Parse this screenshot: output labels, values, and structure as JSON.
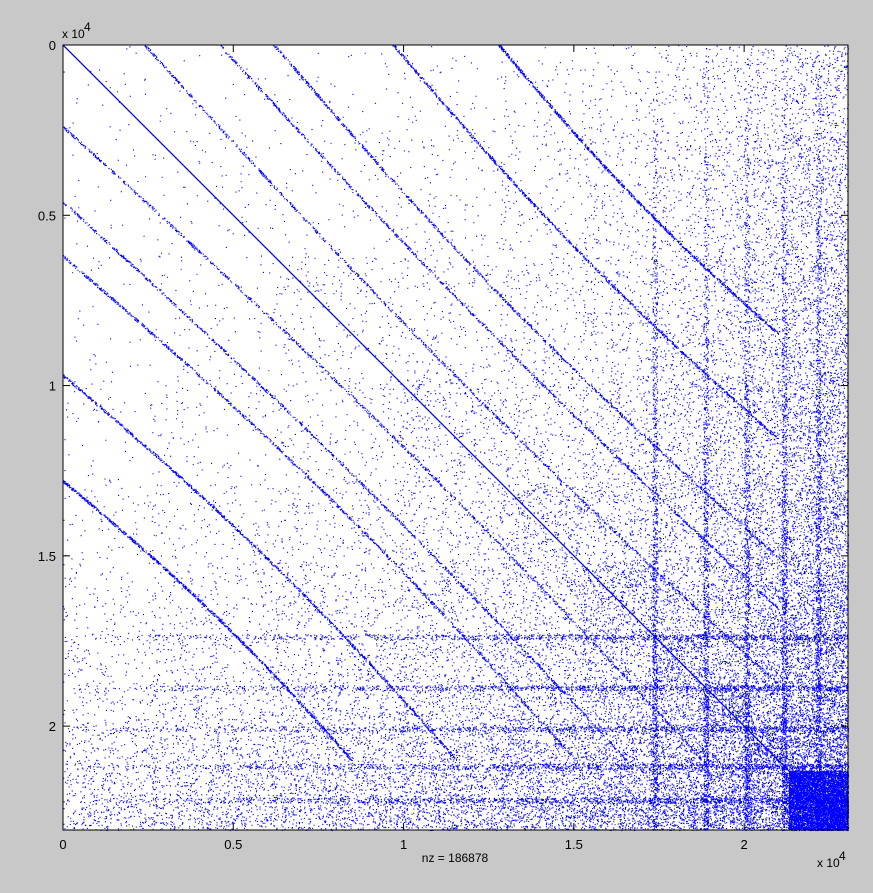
{
  "figure": {
    "background_color": "#c8c8c8",
    "axes_background": "#ffffff",
    "marker_color": "#0000ff"
  },
  "chart_data": {
    "type": "scatter",
    "plot": "sparsity pattern (spy)",
    "nz": 186878,
    "nz_label": "nz = 186878",
    "x_exponent_label": "x 10",
    "x_exponent_power": "4",
    "y_exponent_label": "x 10",
    "y_exponent_power": "4",
    "xlim": [
      0,
      23050
    ],
    "ylim": [
      0,
      23050
    ],
    "y_reversed": true,
    "grid": false,
    "x_ticks": [
      {
        "value": 0,
        "label": "0"
      },
      {
        "value": 5000,
        "label": "0.5"
      },
      {
        "value": 10000,
        "label": "1"
      },
      {
        "value": 15000,
        "label": "1.5"
      },
      {
        "value": 20000,
        "label": "2"
      }
    ],
    "y_ticks": [
      {
        "value": 0,
        "label": "0"
      },
      {
        "value": 5000,
        "label": "0.5"
      },
      {
        "value": 10000,
        "label": "1"
      },
      {
        "value": 15000,
        "label": "1.5"
      },
      {
        "value": 20000,
        "label": "2"
      }
    ],
    "block_boundaries": [
      0,
      2500,
      6200,
      9800,
      12850,
      15200,
      17300,
      18800,
      20150,
      21100,
      22100,
      23050
    ],
    "density_pattern": "diagonal band plus off-diagonal curved bands; block density increases toward the lower-right corner"
  }
}
